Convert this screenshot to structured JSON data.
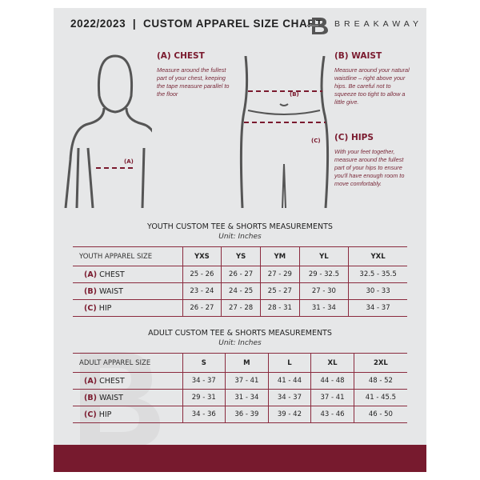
{
  "header": {
    "title": "2022/2023  |  CUSTOM APPAREL SIZE CHART",
    "brand": "BREAKAWAY",
    "logo_letter": "B"
  },
  "guide": {
    "chest": {
      "heading": "(A) CHEST",
      "text": "Measure around the fullest part of your chest, keeping the tape measure parallel to the floor",
      "marker": "(A)"
    },
    "waist": {
      "heading": "(B) WAIST",
      "text": "Measure around your natural waistline – right above your hips. Be careful not to squeeze too tight to allow a little give.",
      "marker": "(B)"
    },
    "hips": {
      "heading": "(C) HIPS",
      "text": "With your feet together, measure around the fullest part of your hips to ensure you'll have enough room to move comfortably.",
      "marker": "(C)"
    }
  },
  "youth": {
    "title": "YOUTH CUSTOM TEE & SHORTS MEASUREMENTS",
    "unit": "Unit: Inches",
    "header": [
      "YOUTH APPAREL SIZE",
      "YXS",
      "YS",
      "YM",
      "YL",
      "YXL"
    ],
    "rows": [
      {
        "tag": "(A)",
        "name": "CHEST",
        "values": [
          "25 - 26",
          "26 - 27",
          "27 - 29",
          "29 - 32.5",
          "32.5 - 35.5"
        ]
      },
      {
        "tag": "(B)",
        "name": "WAIST",
        "values": [
          "23 - 24",
          "24 - 25",
          "25 - 27",
          "27 - 30",
          "30 - 33"
        ]
      },
      {
        "tag": "(C)",
        "name": "HIP",
        "values": [
          "26 - 27",
          "27 - 28",
          "28 - 31",
          "31 - 34",
          "34 - 37"
        ]
      }
    ]
  },
  "adult": {
    "title": "ADULT CUSTOM TEE & SHORTS MEASUREMENTS",
    "unit": "Unit: Inches",
    "header": [
      "ADULT APPAREL SIZE",
      "S",
      "M",
      "L",
      "XL",
      "2XL"
    ],
    "rows": [
      {
        "tag": "(A)",
        "name": "CHEST",
        "values": [
          "34 - 37",
          "37 - 41",
          "41 - 44",
          "44 - 48",
          "48 - 52"
        ]
      },
      {
        "tag": "(B)",
        "name": "WAIST",
        "values": [
          "29 - 31",
          "31 - 34",
          "34 - 37",
          "37 - 41",
          "41 - 45.5"
        ]
      },
      {
        "tag": "(C)",
        "name": "HIP",
        "values": [
          "34 - 36",
          "36 - 39",
          "39 - 42",
          "43 - 46",
          "46 - 50"
        ]
      }
    ]
  },
  "colors": {
    "accent": "#771a2e",
    "background": "#e6e7e8"
  }
}
